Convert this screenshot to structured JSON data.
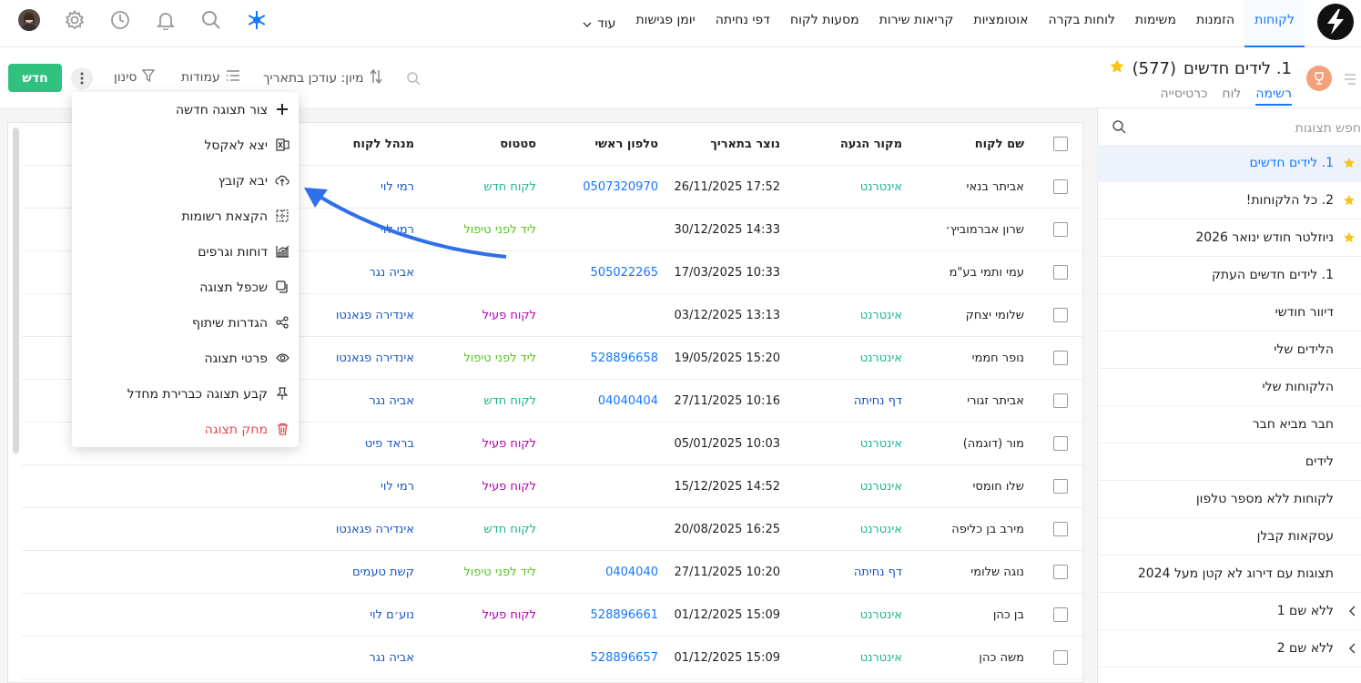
{
  "nav": {
    "items": [
      "לקוחות",
      "הזמנות",
      "משימות",
      "לוחות בקרה",
      "אוטומציות",
      "קריאות שירות",
      "מסעות לקוח",
      "דפי נחיתה",
      "יומן פגישות"
    ],
    "more_label": "עוד",
    "active_index": 0,
    "icons": [
      "snowflake-icon",
      "search-icon",
      "bell-icon",
      "clock-icon",
      "gear-icon",
      "avatar"
    ]
  },
  "view": {
    "title": "1. לידים חדשים",
    "count": "(577)",
    "tabs": [
      "רשימה",
      "לוח",
      "כרטיסייה"
    ],
    "active_tab": 0
  },
  "toolbar": {
    "sort_label": "מיון: עודכן בתאריך",
    "columns_label": "עמודות",
    "filter_label": "סינון",
    "new_label": "חדש"
  },
  "sidebar": {
    "search_placeholder": "חפש תצוגות",
    "items": [
      {
        "label": "1. לידים חדשים",
        "star": true,
        "active": true
      },
      {
        "label": "2. כל הלקוחות!",
        "star": true
      },
      {
        "label": "ניוזלטר חודש ינואר 2026",
        "star": true
      },
      {
        "label": "1. לידים חדשים העתק"
      },
      {
        "label": "דיוור חודשי"
      },
      {
        "label": "הלידים שלי"
      },
      {
        "label": "הלקוחות שלי"
      },
      {
        "label": "חבר מביא חבר"
      },
      {
        "label": "לידים"
      },
      {
        "label": "לקוחות ללא מספר טלפון"
      },
      {
        "label": "עסקאות קבלן"
      },
      {
        "label": "תצוגות עם דירוג לא קטן מעל 2024"
      },
      {
        "label": "ללא שם 1",
        "chevron": true
      },
      {
        "label": "ללא שם 2",
        "chevron": true
      }
    ]
  },
  "table": {
    "headers": {
      "name": "שם לקוח",
      "source": "מקור הגעה",
      "created": "נוצר בתאריך",
      "phone": "טלפון ראשי",
      "status": "סטטוס",
      "manager": "מנהל לקוח"
    },
    "rows": [
      {
        "name": "אביתר בנאי",
        "source": "אינטרנט",
        "src": "web",
        "created": "17:52 26/11/2025",
        "phone": "0507320970",
        "status": "לקוח חדש",
        "st": "new",
        "manager": "רמי לוי"
      },
      {
        "name": "שרון אברמוביץ׳",
        "source": "",
        "src": "",
        "created": "14:33 30/12/2025",
        "phone": "",
        "status": "ליד לפני טיפול",
        "st": "before",
        "manager": "רמי לוי"
      },
      {
        "name": "עמי ותמי בע\"מ",
        "source": "",
        "src": "",
        "created": "10:33 17/03/2025",
        "phone": "505022265",
        "status": "",
        "st": "",
        "manager": "אביה נגר"
      },
      {
        "name": "שלומי יצחק",
        "source": "אינטרנט",
        "src": "web",
        "created": "13:13 03/12/2025",
        "phone": "",
        "status": "לקוח פעיל",
        "st": "active",
        "manager": "אינדירה פגאנטו"
      },
      {
        "name": "נופר חממי",
        "source": "אינטרנט",
        "src": "web",
        "created": "15:20 19/05/2025",
        "phone": "528896658",
        "status": "ליד לפני טיפול",
        "st": "before",
        "manager": "אינדירה פגאנטו"
      },
      {
        "name": "אביתר זגורי",
        "source": "דף נחיתה",
        "src": "page",
        "created": "10:16 27/11/2025",
        "phone": "04040404",
        "status": "לקוח חדש",
        "st": "new",
        "manager": "אביה נגר"
      },
      {
        "name": "מור (דוגמה)",
        "source": "אינטרנט",
        "src": "web",
        "created": "10:03 05/01/2025",
        "phone": "",
        "status": "לקוח פעיל",
        "st": "active",
        "manager": "בראד פיט"
      },
      {
        "name": "שלו חומסי",
        "source": "אינטרנט",
        "src": "web",
        "created": "14:52 15/12/2025",
        "phone": "",
        "status": "לקוח פעיל",
        "st": "active",
        "manager": "רמי לוי"
      },
      {
        "name": "מירב בן כליפה",
        "source": "אינטרנט",
        "src": "web",
        "created": "16:25 20/08/2025",
        "phone": "",
        "status": "לקוח חדש",
        "st": "new",
        "manager": "אינדירה פגאנטו"
      },
      {
        "name": "נוגה שלומי",
        "source": "דף נחיתה",
        "src": "page",
        "created": "10:20 27/11/2025",
        "phone": "0404040",
        "status": "ליד לפני טיפול",
        "st": "before",
        "manager": "קשת טעמים"
      },
      {
        "name": "בן כהן",
        "source": "אינטרנט",
        "src": "web",
        "created": "15:09 01/12/2025",
        "phone": "528896661",
        "status": "לקוח פעיל",
        "st": "active",
        "manager": "נוע׳ם לוי"
      },
      {
        "name": "משה כהן",
        "source": "אינטרנט",
        "src": "web",
        "created": "15:09 01/12/2025",
        "phone": "528896657",
        "status": "",
        "st": "",
        "manager": "אביה נגר"
      }
    ]
  },
  "menu": {
    "items": [
      {
        "label": "צור תצוגה חדשה",
        "icon": "plus-icon"
      },
      {
        "label": "יצא לאקסל",
        "icon": "excel-export-icon"
      },
      {
        "label": "יבא קובץ",
        "icon": "cloud-upload-icon"
      },
      {
        "label": "הקצאת רשומות",
        "icon": "assign-records-icon"
      },
      {
        "label": "דוחות וגרפים",
        "icon": "chart-icon"
      },
      {
        "label": "שכפל תצוגה",
        "icon": "duplicate-icon"
      },
      {
        "label": "הגדרות שיתוף",
        "icon": "share-icon"
      },
      {
        "label": "פרטי תצוגה",
        "icon": "eye-icon"
      },
      {
        "label": "קבע תצוגה כברירת מחדל",
        "icon": "pin-icon"
      },
      {
        "label": "מחק תצוגה",
        "icon": "trash-icon",
        "danger": true
      }
    ]
  },
  "colors": {
    "accent": "#1677ff",
    "new_button": "#2ec27e",
    "annotation_arrow": "#2f6fec"
  }
}
